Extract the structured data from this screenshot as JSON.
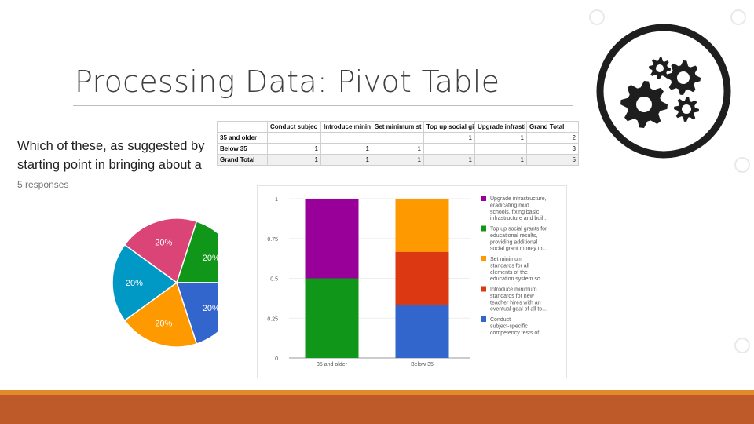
{
  "slide": {
    "title": "Processing Data: Pivot Table"
  },
  "form": {
    "question_line1": "Which of these, as suggested by",
    "question_line2": "starting point in bringing about a",
    "responses": "5 responses"
  },
  "pivot": {
    "headers": [
      "",
      "Conduct subjec",
      "Introduce minin",
      "Set minimum st",
      "Top up social gi",
      "Upgrade infrasti",
      "Grand Total"
    ],
    "rows": [
      {
        "label": "35 and older",
        "cells": [
          "",
          "",
          "",
          "1",
          "1",
          "2"
        ]
      },
      {
        "label": "Below 35",
        "cells": [
          "1",
          "1",
          "1",
          "",
          "",
          "3"
        ]
      },
      {
        "label": "Grand Total",
        "cells": [
          "1",
          "1",
          "1",
          "1",
          "1",
          "5"
        ]
      }
    ]
  },
  "chart_data": [
    {
      "type": "pie",
      "labels": [
        "",
        "",
        "",
        "",
        ""
      ],
      "values": [
        20,
        20,
        20,
        20,
        20
      ],
      "value_labels": [
        "20%",
        "20%",
        "20%",
        "20%",
        "20%"
      ],
      "colors": [
        "#db4476",
        "#109618",
        "#3366cc",
        "#ff9900",
        "#0099c6"
      ]
    },
    {
      "type": "bar",
      "stacked": true,
      "categories": [
        "35 and older",
        "Below 35"
      ],
      "series": [
        {
          "name": "Conduct subject-specific competency tests of...",
          "color": "#3366cc",
          "values": [
            0,
            0.3333
          ]
        },
        {
          "name": "Introduce minimum standards for new teacher hires with an eventual goal of all to...",
          "color": "#dc3912",
          "values": [
            0,
            0.3333
          ]
        },
        {
          "name": "Set minimum standards for all elements of the education system so...",
          "color": "#ff9900",
          "values": [
            0,
            0.3334
          ]
        },
        {
          "name": "Top up social grants for educational results, providing additional social grant money to...",
          "color": "#109618",
          "values": [
            0.5,
            0
          ]
        },
        {
          "name": "Upgrade infrastructure, eradicating mud schools, fixing basic infrastructure and buil...",
          "color": "#990099",
          "values": [
            0.5,
            0
          ]
        }
      ],
      "yticks": [
        "0",
        "0.25",
        "0.5",
        "0.75",
        "1"
      ],
      "ylim": [
        0,
        1
      ],
      "legend_position": "right",
      "legend": [
        {
          "color": "#990099",
          "lines": [
            "Upgrade infrastructure,",
            "eradicating mud",
            "schools, fixing basic",
            "infrastructure and buil..."
          ]
        },
        {
          "color": "#109618",
          "lines": [
            "Top up social grants for",
            "educational results,",
            "providing additional",
            "social grant money to..."
          ]
        },
        {
          "color": "#ff9900",
          "lines": [
            "Set minimum",
            "standards for all",
            "elements of the",
            "education system so..."
          ]
        },
        {
          "color": "#dc3912",
          "lines": [
            "Introduce minimum",
            "standards for new",
            "teacher hires with an",
            "eventual goal of all to..."
          ]
        },
        {
          "color": "#3366cc",
          "lines": [
            "Conduct",
            "subject-specific",
            "competency tests of..."
          ]
        }
      ]
    }
  ],
  "decor": {
    "gear_icon": "gears-icon",
    "accent_bar_color": "#be5a29",
    "accent_line_color": "#e08a2a"
  }
}
